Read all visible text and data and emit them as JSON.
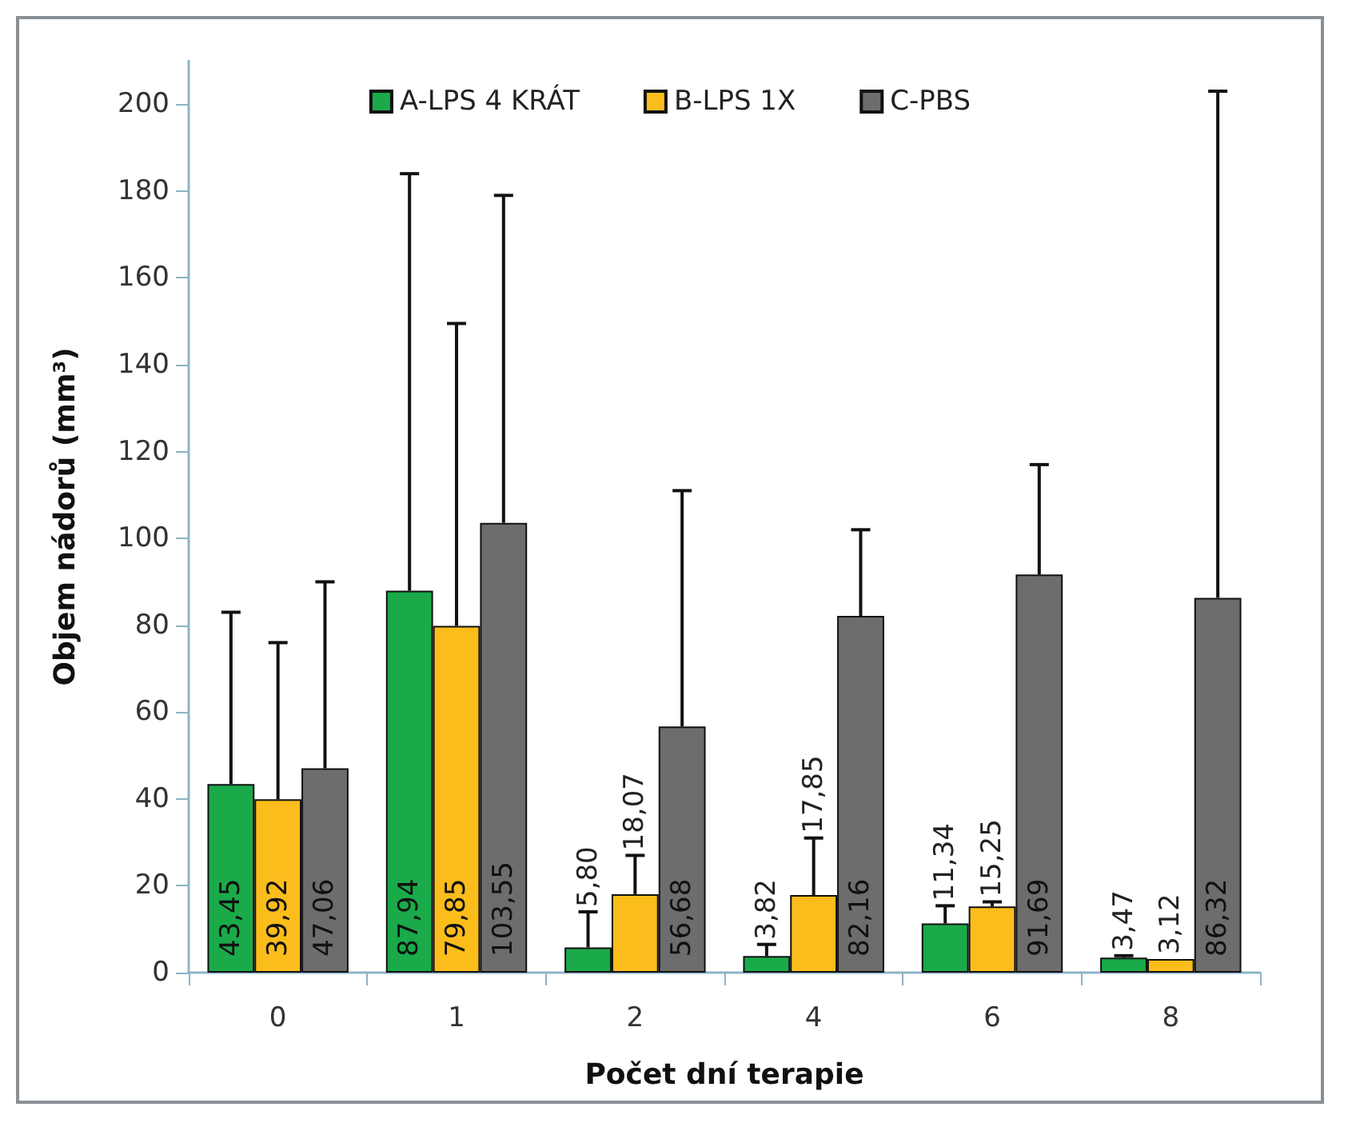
{
  "chart_data": {
    "type": "bar",
    "xlabel": "Počet dní terapie",
    "ylabel": "Objem nádorů (mm³)",
    "categories": [
      "0",
      "1",
      "2",
      "4",
      "6",
      "8"
    ],
    "series": [
      {
        "name": "A-LPS 4 KRÁT",
        "color": "#1aaa4a",
        "values": [
          43.45,
          87.94,
          5.8,
          3.82,
          11.34,
          3.47
        ],
        "value_labels": [
          "43,45",
          "87,94",
          "5,80",
          "3,82",
          "11,34",
          "3,47"
        ],
        "errors": [
          [
            43.45,
            83
          ],
          [
            87.94,
            184
          ],
          [
            5.8,
            14
          ],
          [
            3.82,
            6.5
          ],
          [
            11.34,
            15.4
          ],
          [
            3.47,
            3.9
          ]
        ]
      },
      {
        "name": "B-LPS 1X",
        "color": "#fbbd1c",
        "values": [
          39.92,
          79.85,
          18.07,
          17.85,
          15.25,
          3.12
        ],
        "value_labels": [
          "39,92",
          "79,85",
          "18,07",
          "17,85",
          "15,25",
          "3,12"
        ],
        "errors": [
          [
            39.92,
            76
          ],
          [
            79.85,
            149.5
          ],
          [
            18.07,
            27
          ],
          [
            17.85,
            31
          ],
          [
            15.25,
            16.3
          ],
          null
        ]
      },
      {
        "name": "C-PBS",
        "color": "#6d6d6d",
        "values": [
          47.06,
          103.55,
          56.68,
          82.16,
          91.69,
          86.32
        ],
        "value_labels": [
          "47,06",
          "103,55",
          "56,68",
          "82,16",
          "91,69",
          "86,32"
        ],
        "errors": [
          [
            47.06,
            90
          ],
          [
            103.55,
            179
          ],
          [
            56.68,
            111
          ],
          [
            82.16,
            102
          ],
          [
            91.69,
            117
          ],
          [
            86.32,
            203
          ]
        ]
      }
    ],
    "ylim": [
      0,
      210
    ],
    "yticks": [
      0,
      20,
      40,
      60,
      80,
      100,
      120,
      140,
      160,
      180,
      200
    ],
    "legend": "top",
    "grid": false
  }
}
